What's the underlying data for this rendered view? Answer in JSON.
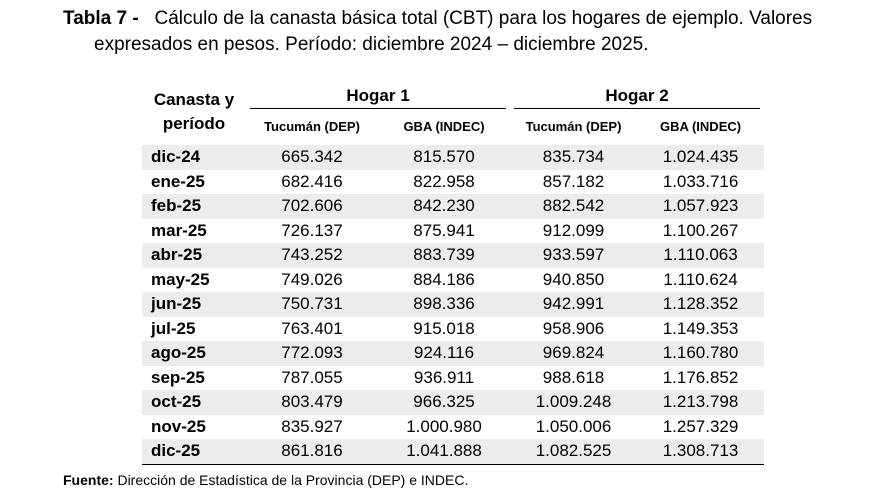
{
  "caption": {
    "label": "Tabla 7 -",
    "text_line1": "Cálculo de la canasta básica total (CBT) para los hogares de ejemplo. Valores",
    "text_line2": "expresados en pesos. Período: diciembre 2024 – diciembre 2025."
  },
  "table": {
    "corner_header_line1": "Canasta y",
    "corner_header_line2": "período",
    "groups": [
      "Hogar 1",
      "Hogar 2"
    ],
    "subheaders": [
      "Tucumán (DEP)",
      "GBA (INDEC)",
      "Tucumán (DEP)",
      "GBA (INDEC)"
    ],
    "rows": [
      {
        "period": "dic-24",
        "h1_tuc": "665.342",
        "h1_gba": "815.570",
        "h2_tuc": "835.734",
        "h2_gba": "1.024.435"
      },
      {
        "period": "ene-25",
        "h1_tuc": "682.416",
        "h1_gba": "822.958",
        "h2_tuc": "857.182",
        "h2_gba": "1.033.716"
      },
      {
        "period": "feb-25",
        "h1_tuc": "702.606",
        "h1_gba": "842.230",
        "h2_tuc": "882.542",
        "h2_gba": "1.057.923"
      },
      {
        "period": "mar-25",
        "h1_tuc": "726.137",
        "h1_gba": "875.941",
        "h2_tuc": "912.099",
        "h2_gba": "1.100.267"
      },
      {
        "period": "abr-25",
        "h1_tuc": "743.252",
        "h1_gba": "883.739",
        "h2_tuc": "933.597",
        "h2_gba": "1.110.063"
      },
      {
        "period": "may-25",
        "h1_tuc": "749.026",
        "h1_gba": "884.186",
        "h2_tuc": "940.850",
        "h2_gba": "1.110.624"
      },
      {
        "period": "jun-25",
        "h1_tuc": "750.731",
        "h1_gba": "898.336",
        "h2_tuc": "942.991",
        "h2_gba": "1.128.352"
      },
      {
        "period": "jul-25",
        "h1_tuc": "763.401",
        "h1_gba": "915.018",
        "h2_tuc": "958.906",
        "h2_gba": "1.149.353"
      },
      {
        "period": "ago-25",
        "h1_tuc": "772.093",
        "h1_gba": "924.116",
        "h2_tuc": "969.824",
        "h2_gba": "1.160.780"
      },
      {
        "period": "sep-25",
        "h1_tuc": "787.055",
        "h1_gba": "936.911",
        "h2_tuc": "988.618",
        "h2_gba": "1.176.852"
      },
      {
        "period": "oct-25",
        "h1_tuc": "803.479",
        "h1_gba": "966.325",
        "h2_tuc": "1.009.248",
        "h2_gba": "1.213.798"
      },
      {
        "period": "nov-25",
        "h1_tuc": "835.927",
        "h1_gba": "1.000.980",
        "h2_tuc": "1.050.006",
        "h2_gba": "1.257.329"
      },
      {
        "period": "dic-25",
        "h1_tuc": "861.816",
        "h1_gba": "1.041.888",
        "h2_tuc": "1.082.525",
        "h2_gba": "1.308.713"
      }
    ]
  },
  "source": {
    "label": "Fuente:",
    "text": "Dirección de Estadística de la Provincia (DEP) e INDEC."
  }
}
